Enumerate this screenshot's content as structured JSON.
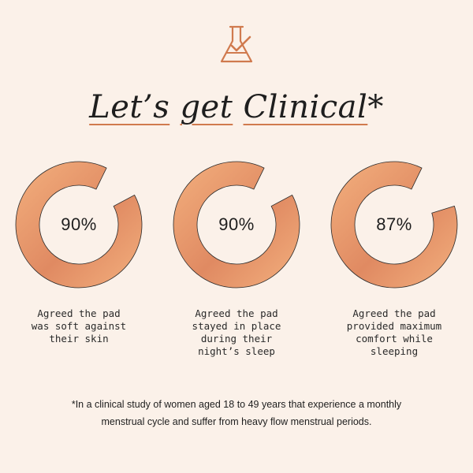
{
  "icon": "beaker-check-icon",
  "headline": {
    "word1": "Let’s",
    "word2": "get",
    "word3": "Clinical",
    "asterisk": "*"
  },
  "colors": {
    "background": "#fbf1e9",
    "accent": "#d07a4e",
    "ring_light": "#f3b07e",
    "ring_dark": "#e08a62"
  },
  "chart_data": [
    {
      "type": "pie",
      "values": [
        90,
        10
      ],
      "label": "90%",
      "caption": [
        "Agreed the pad",
        "was soft against",
        "their skin"
      ]
    },
    {
      "type": "pie",
      "values": [
        90,
        10
      ],
      "label": "90%",
      "caption": [
        "Agreed the pad",
        "stayed in place",
        "during their",
        "night’s sleep"
      ]
    },
    {
      "type": "pie",
      "values": [
        87,
        13
      ],
      "label": "87%",
      "caption": [
        "Agreed the pad",
        "provided maximum",
        "comfort while",
        "sleeping"
      ]
    }
  ],
  "footnote": {
    "line1": "*In a clinical study of women aged 18 to 49 years that experience a monthly",
    "line2": "menstrual cycle and suffer from heavy flow menstrual periods."
  }
}
